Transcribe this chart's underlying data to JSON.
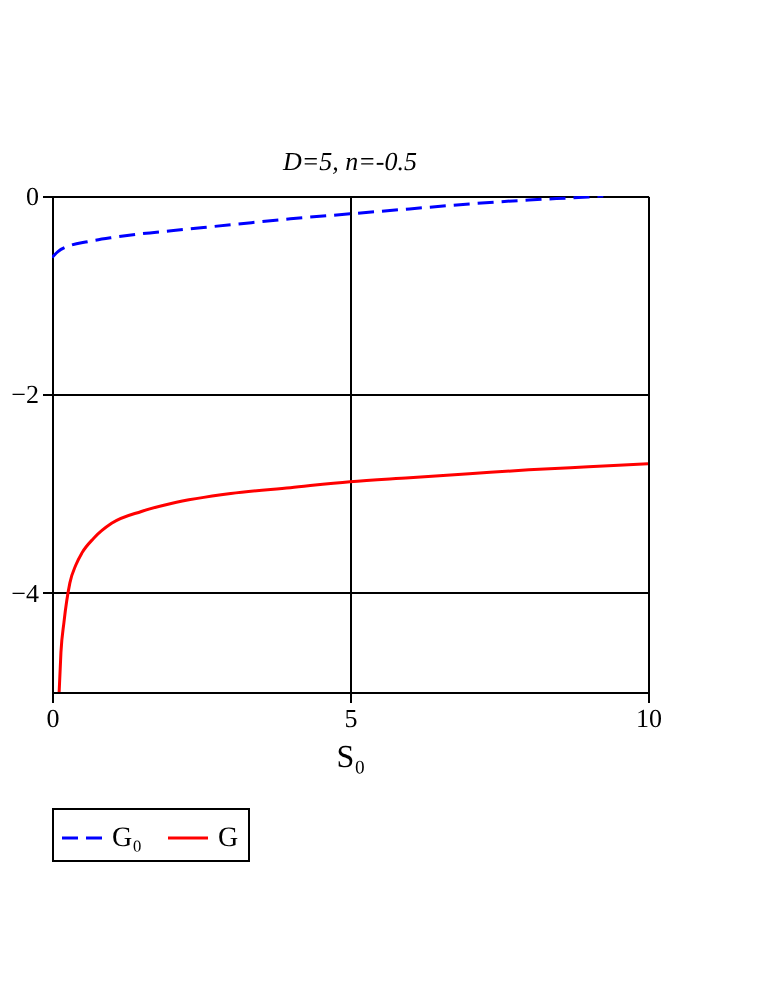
{
  "chart_data": {
    "type": "line",
    "title": "D=5, n=-0.5",
    "xlabel": "S₀",
    "xlim": [
      0,
      10
    ],
    "ylim": [
      -5,
      0
    ],
    "xticks": [
      0,
      5,
      10
    ],
    "yticks": [
      0,
      -2,
      -4
    ],
    "grid": true,
    "legend": "bottom",
    "series": [
      {
        "name": "G₀",
        "color": "#0000ff",
        "line_style": "dashed",
        "x": [
          0,
          0.1,
          0.3,
          0.6,
          1,
          1.5,
          2,
          3,
          4,
          5,
          6,
          7,
          8,
          9,
          9.25
        ],
        "values": [
          -0.62,
          -0.56,
          -0.5,
          -0.46,
          -0.42,
          -0.38,
          -0.35,
          -0.29,
          -0.23,
          -0.18,
          -0.13,
          -0.08,
          -0.04,
          -0.01,
          0
        ]
      },
      {
        "name": "G",
        "color": "#ff0000",
        "line_style": "solid",
        "x": [
          0.12,
          0.15,
          0.2,
          0.3,
          0.4,
          0.5,
          0.7,
          1,
          1.5,
          2,
          3,
          4,
          5,
          6,
          7,
          8,
          9,
          10
        ],
        "values": [
          -5,
          -4.6,
          -4.3,
          -3.9,
          -3.72,
          -3.6,
          -3.45,
          -3.3,
          -3.18,
          -3.1,
          -3.0,
          -2.94,
          -2.88,
          -2.84,
          -2.8,
          -2.76,
          -2.73,
          -2.7
        ]
      }
    ]
  }
}
